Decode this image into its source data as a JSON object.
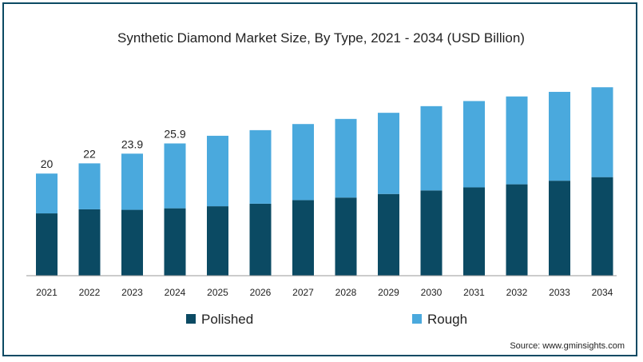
{
  "chart_data": {
    "type": "bar",
    "stacked": true,
    "title": "Synthetic Diamond Market Size, By Type, 2021 - 2034 (USD Billion)",
    "xlabel": "",
    "ylabel": "",
    "categories": [
      "2021",
      "2022",
      "2023",
      "2024",
      "2025",
      "2026",
      "2027",
      "2028",
      "2029",
      "2030",
      "2031",
      "2032",
      "2033",
      "2034"
    ],
    "series": [
      {
        "name": "Polished",
        "color": "#0b4a63",
        "values": [
          12.2,
          13.0,
          12.9,
          13.2,
          13.6,
          14.1,
          14.8,
          15.3,
          16.0,
          16.7,
          17.3,
          17.9,
          18.6,
          19.3
        ]
      },
      {
        "name": "Rough",
        "color": "#4aa9dd",
        "values": [
          7.8,
          9.0,
          11.0,
          12.7,
          13.8,
          14.4,
          14.9,
          15.4,
          15.9,
          16.5,
          16.9,
          17.2,
          17.4,
          17.6
        ]
      }
    ],
    "totals_labels": [
      "20",
      "22",
      "23.9",
      "25.9",
      "",
      "",
      "",
      "",
      "",
      "",
      "",
      "",
      "",
      ""
    ],
    "ylim": [
      0,
      41
    ],
    "grid": false,
    "legend_position": "bottom"
  },
  "source": "Source: www.gminsights.com"
}
